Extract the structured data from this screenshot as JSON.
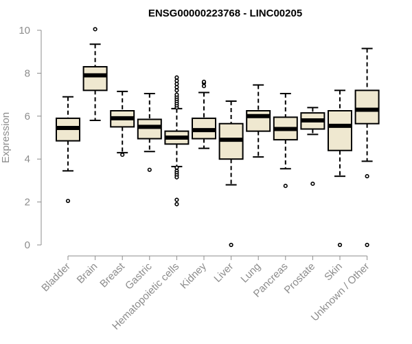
{
  "chart_data": {
    "type": "boxplot",
    "title": "ENSG00000223768 - LINC00205",
    "xlabel": "",
    "ylabel": "Expression",
    "ylim": [
      0,
      10
    ],
    "yticks": [
      0,
      2,
      4,
      6,
      8,
      10
    ],
    "box_fill": "#efe8d0",
    "box_stroke": "#000000",
    "axis_color": "#8c8c8c",
    "categories": [
      "Bladder",
      "Brain",
      "Breast",
      "Gastric",
      "Hematopoietic cells",
      "Kidney",
      "Liver",
      "Lung",
      "Pancreas",
      "Prostate",
      "Skin",
      "Unknown / Other"
    ],
    "boxes": [
      {
        "q1": 4.85,
        "median": 5.45,
        "q3": 5.9,
        "whisker_low": 3.45,
        "whisker_high": 6.9,
        "outliers": [
          2.05
        ]
      },
      {
        "q1": 7.2,
        "median": 7.9,
        "q3": 8.3,
        "whisker_low": 5.8,
        "whisker_high": 9.35,
        "outliers": [
          10.05
        ]
      },
      {
        "q1": 5.5,
        "median": 5.9,
        "q3": 6.25,
        "whisker_low": 4.3,
        "whisker_high": 7.15,
        "outliers": [
          4.2
        ]
      },
      {
        "q1": 4.95,
        "median": 5.5,
        "q3": 5.85,
        "whisker_low": 4.35,
        "whisker_high": 7.05,
        "outliers": [
          3.5
        ]
      },
      {
        "q1": 4.7,
        "median": 5.0,
        "q3": 5.3,
        "whisker_low": 3.65,
        "whisker_high": 6.35,
        "outliers": [
          3.6,
          3.45,
          3.35,
          3.25,
          3.15,
          2.1,
          1.9,
          6.4,
          6.5,
          6.6,
          6.7,
          6.8,
          6.9,
          7.0,
          7.2,
          7.35,
          7.5,
          7.65,
          7.8
        ]
      },
      {
        "q1": 4.95,
        "median": 5.35,
        "q3": 5.9,
        "whisker_low": 4.5,
        "whisker_high": 7.1,
        "outliers": [
          7.4,
          7.55,
          7.6
        ]
      },
      {
        "q1": 4.0,
        "median": 4.9,
        "q3": 5.65,
        "whisker_low": 2.8,
        "whisker_high": 6.7,
        "outliers": [
          0.0
        ]
      },
      {
        "q1": 5.3,
        "median": 6.0,
        "q3": 6.25,
        "whisker_low": 4.1,
        "whisker_high": 7.45,
        "outliers": []
      },
      {
        "q1": 4.9,
        "median": 5.4,
        "q3": 5.95,
        "whisker_low": 3.55,
        "whisker_high": 7.05,
        "outliers": [
          2.75
        ]
      },
      {
        "q1": 5.4,
        "median": 5.8,
        "q3": 6.15,
        "whisker_low": 5.15,
        "whisker_high": 6.4,
        "outliers": [
          2.85
        ]
      },
      {
        "q1": 4.4,
        "median": 5.55,
        "q3": 6.25,
        "whisker_low": 3.2,
        "whisker_high": 7.2,
        "outliers": [
          0.0
        ]
      },
      {
        "q1": 5.65,
        "median": 6.3,
        "q3": 7.2,
        "whisker_low": 3.9,
        "whisker_high": 9.15,
        "outliers": [
          3.2,
          0.0
        ]
      }
    ]
  }
}
